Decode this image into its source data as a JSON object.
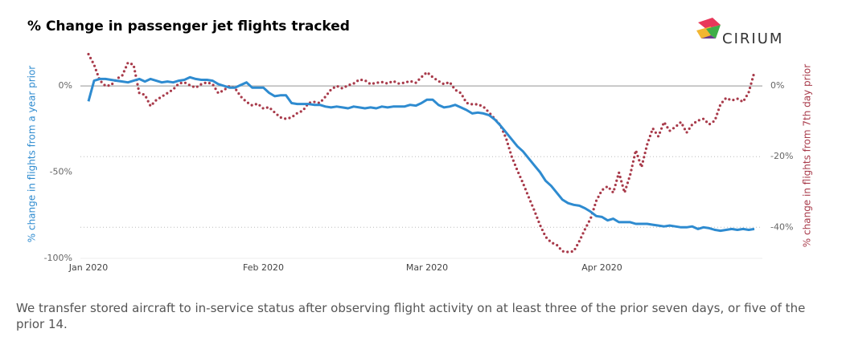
{
  "chart_data": {
    "type": "line",
    "title": "% Change in passenger jet flights tracked",
    "brand": "CIRIUM",
    "ylabel": "% change in flights from a year prior",
    "y2label": "% change in flights from 7th day prior",
    "note": "We transfer stored aircraft to in-service status after observing flight activity on at least three of the prior seven days, or five of the prior 14.",
    "categories": [
      "Jan 2020",
      null,
      null,
      null,
      null,
      null,
      null,
      null,
      null,
      null,
      null,
      null,
      null,
      null,
      null,
      null,
      null,
      null,
      null,
      null,
      null,
      null,
      null,
      null,
      null,
      null,
      null,
      null,
      null,
      null,
      null,
      "Feb 2020",
      null,
      null,
      null,
      null,
      null,
      null,
      null,
      null,
      null,
      null,
      null,
      null,
      null,
      null,
      null,
      null,
      null,
      null,
      null,
      null,
      null,
      null,
      null,
      null,
      null,
      null,
      null,
      null,
      "Mar 2020",
      null,
      null,
      null,
      null,
      null,
      null,
      null,
      null,
      null,
      null,
      null,
      null,
      null,
      null,
      null,
      null,
      null,
      null,
      null,
      null,
      null,
      null,
      null,
      null,
      null,
      null,
      null,
      null,
      null,
      null,
      "Apr 2020",
      null,
      null,
      null,
      null,
      null,
      null,
      null,
      null,
      null,
      null,
      null,
      null,
      null,
      null,
      null,
      null,
      null,
      null,
      null,
      null,
      null,
      null,
      null,
      null,
      null,
      null,
      null
    ],
    "series": [
      {
        "color": "#2e8bd0",
        "style": "solid",
        "values": [
          -9,
          3,
          4,
          4,
          3.5,
          3,
          2.5,
          2,
          3,
          4,
          2.5,
          4,
          3,
          2,
          2.5,
          2,
          3,
          3.5,
          5,
          4,
          3.5,
          3.5,
          3,
          1,
          0,
          -1,
          -1,
          0.5,
          2,
          -1,
          -1,
          -1,
          -4,
          -6,
          -5.5,
          -5.5,
          -10,
          -10.5,
          -10.5,
          -10.5,
          -11,
          -11,
          -12,
          -12.5,
          -12,
          -12.5,
          -13,
          -12,
          -12.5,
          -13,
          -12.5,
          -13,
          -12,
          -12.5,
          -12,
          -12,
          -12,
          -11,
          -11.5,
          -10,
          -8,
          -8,
          -11,
          -12.5,
          -12,
          -11,
          -12.5,
          -14,
          -16,
          -15.5,
          -16,
          -17,
          -19.5,
          -23,
          -27,
          -31,
          -35,
          -38,
          -42,
          -46,
          -50,
          -55,
          -58,
          -62,
          -66,
          -68,
          -69,
          -69.5,
          -71,
          -73,
          -75.5,
          -76,
          -78,
          -77,
          -79,
          -79,
          -79,
          -80,
          -80,
          -80,
          -80.5,
          -81,
          -81.5,
          -81,
          -81.5,
          -82,
          -82,
          -81.5,
          -83,
          -82,
          -82.5,
          -83.5,
          -84,
          -83.5,
          -83,
          -83.5,
          -83,
          -83.5,
          -83
        ]
      },
      {
        "color": "#a83a4a",
        "style": "dotted",
        "axis": "y2",
        "values": [
          9,
          6,
          1.6,
          0,
          0.2,
          2,
          3,
          6.6,
          6,
          -2,
          -2.5,
          -5.7,
          -4,
          -3,
          -2,
          -1,
          0.7,
          1,
          0.2,
          -0.5,
          0.5,
          1,
          0.5,
          -2,
          -1.2,
          0,
          -0.7,
          -3,
          -4.5,
          -5.5,
          -5,
          -6.4,
          -6,
          -7.5,
          -8.9,
          -9.3,
          -8.9,
          -7.7,
          -7,
          -4.8,
          -4.5,
          -4.8,
          -3,
          -1,
          0,
          -0.7,
          0.2,
          0.7,
          1.8,
          1.6,
          0.5,
          0.9,
          1.1,
          0.7,
          1.4,
          0.7,
          0.9,
          1.4,
          0.9,
          2.5,
          3.9,
          2.5,
          1.4,
          0.5,
          1.1,
          -1.1,
          -2,
          -4.8,
          -5.2,
          -5.2,
          -5.9,
          -7.5,
          -9.3,
          -11.1,
          -14.8,
          -20,
          -23.9,
          -27.5,
          -31.4,
          -35.2,
          -39.3,
          -42.7,
          -44.3,
          -45,
          -46.8,
          -47,
          -46.8,
          -43.9,
          -40.5,
          -37.5,
          -32.5,
          -29.5,
          -28.4,
          -30.2,
          -24.5,
          -30.2,
          -25.2,
          -18.2,
          -23,
          -16.6,
          -12,
          -14.3,
          -10.2,
          -12.7,
          -11.6,
          -10.2,
          -13.2,
          -10.9,
          -9.8,
          -9.3,
          -10.9,
          -9.8,
          -5.2,
          -3.4,
          -4.1,
          -3.6,
          -4.5,
          -1.8,
          3.9
        ]
      }
    ],
    "ylim": [
      -100,
      20
    ],
    "yticks": [
      {
        "value": 0,
        "label": "0%"
      },
      {
        "value": -50,
        "label": "-50%"
      },
      {
        "value": -100,
        "label": "-100%"
      }
    ],
    "y2lim": [
      -48.8,
      9.8
    ],
    "y2ticks": [
      {
        "value": 0,
        "label": "0%"
      },
      {
        "value": -20,
        "label": "-20%"
      },
      {
        "value": -40,
        "label": "-40%"
      }
    ],
    "grid": true
  }
}
